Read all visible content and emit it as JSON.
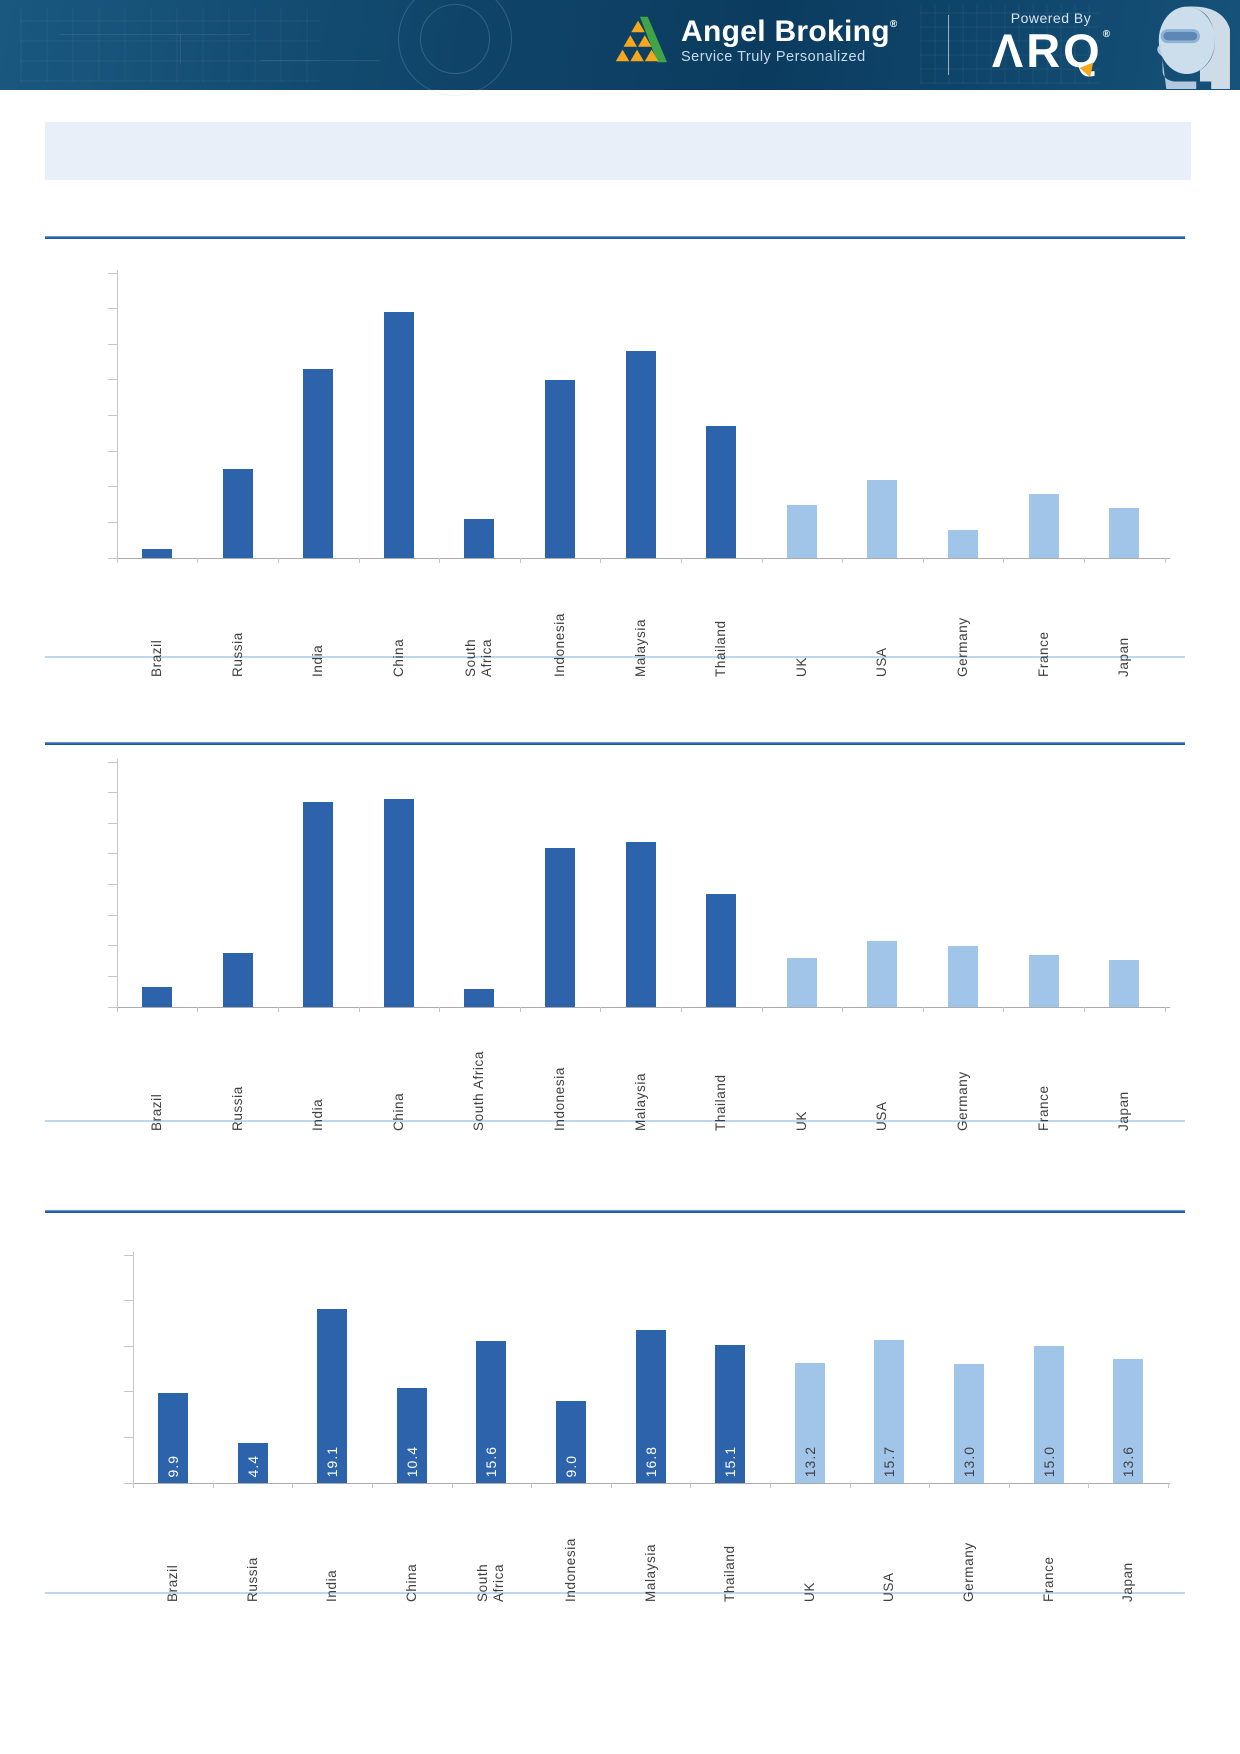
{
  "header": {
    "brand": "Angel Broking",
    "brand_mark": "®",
    "tagline": "Service Truly Personalized",
    "powered_by": "Powered By",
    "product": "ARQ",
    "product_mark": "®"
  },
  "colors": {
    "emerging_bar": "#2D63AB",
    "developed_bar": "#A1C5E8",
    "section_rule": "#2263AA",
    "section_rule_faint": "#BDD7EE",
    "axis": "#C6C6C6",
    "category_label": "#3F3F3F",
    "value_label_on_dark": "#FFFFFF",
    "value_label_on_light": "#404040",
    "banner_bg": "#E9EFF8",
    "header_bg": "#0B3C60",
    "logo_gold": "#F5A81C",
    "logo_green": "#41A548"
  },
  "chart_data": [
    {
      "type": "bar",
      "title": "",
      "xlabel": "",
      "ylabel": "",
      "categories": [
        "Brazil",
        "Russia",
        "India",
        "China",
        "South\nAfrica",
        "Indonesia",
        "Malaysia",
        "Thailand",
        "UK",
        "USA",
        "Germany",
        "France",
        "Japan"
      ],
      "values": [
        0.25,
        2.5,
        5.3,
        6.9,
        1.1,
        5.0,
        5.8,
        3.7,
        1.5,
        2.2,
        0.8,
        1.8,
        1.4
      ],
      "ylim": [
        0,
        8
      ],
      "tick_step": 1,
      "y_axis_labels_visible": false,
      "show_value_labels": false,
      "emerging_count": 8,
      "grid": false,
      "legend": false,
      "xlabel_rotation": -90
    },
    {
      "type": "bar",
      "title": "",
      "xlabel": "",
      "ylabel": "",
      "categories": [
        "Brazil",
        "Russia",
        "India",
        "China",
        "South Africa",
        "Indonesia",
        "Malaysia",
        "Thailand",
        "UK",
        "USA",
        "Germany",
        "France",
        "Japan"
      ],
      "values": [
        0.65,
        1.75,
        6.7,
        6.8,
        0.6,
        5.2,
        5.4,
        3.7,
        1.6,
        2.15,
        2.0,
        1.7,
        1.55
      ],
      "ylim": [
        0,
        8
      ],
      "tick_step": 1,
      "y_axis_labels_visible": false,
      "show_value_labels": false,
      "emerging_count": 8,
      "grid": false,
      "legend": false,
      "xlabel_rotation": -90
    },
    {
      "type": "bar",
      "title": "",
      "xlabel": "",
      "ylabel": "",
      "categories": [
        "Brazil",
        "Russia",
        "India",
        "China",
        "South\nAfrica",
        "Indonesia",
        "Malaysia",
        "Thailand",
        "UK",
        "USA",
        "Germany",
        "France",
        "Japan"
      ],
      "values": [
        9.9,
        4.4,
        19.1,
        10.4,
        15.6,
        9.0,
        16.8,
        15.1,
        13.2,
        15.7,
        13.0,
        15.0,
        13.6
      ],
      "value_labels": [
        "9.9",
        "4.4",
        "19.1",
        "10.4",
        "15.6",
        "9.0",
        "16.8",
        "15.1",
        "13.2",
        "15.7",
        "13.0",
        "15.0",
        "13.6"
      ],
      "ylim": [
        0,
        25
      ],
      "tick_step": 5,
      "y_axis_labels_visible": false,
      "show_value_labels": true,
      "emerging_count": 8,
      "grid": false,
      "legend": false,
      "xlabel_rotation": -90
    }
  ]
}
